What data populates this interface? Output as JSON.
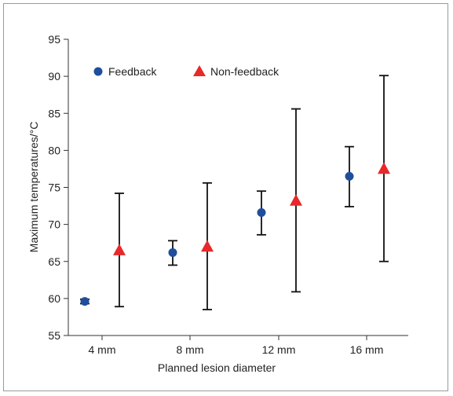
{
  "colors": {
    "feedback": "#1f4e9c",
    "non_feedback": "#e8282a"
  },
  "chart_data": {
    "type": "scatter",
    "title": "",
    "xlabel": "Planned lesion diameter",
    "ylabel": "Maximum temperatures/°C",
    "categories": [
      "4 mm",
      "8 mm",
      "12 mm",
      "16 mm"
    ],
    "ylim": [
      55,
      95
    ],
    "yticks": [
      55,
      60,
      65,
      70,
      75,
      80,
      85,
      90,
      95
    ],
    "grid": false,
    "legend_placement": "top-left",
    "series": [
      {
        "name": "Feedback",
        "marker": "circle",
        "values": [
          59.6,
          66.2,
          71.6,
          76.5
        ],
        "err_low": [
          59.3,
          64.5,
          68.6,
          72.4
        ],
        "err_high": [
          59.9,
          67.8,
          74.5,
          80.5
        ]
      },
      {
        "name": "Non-feedback",
        "marker": "triangle",
        "values": [
          66.5,
          67.0,
          73.2,
          77.5
        ],
        "err_low": [
          58.9,
          58.5,
          60.9,
          65.0
        ],
        "err_high": [
          74.2,
          75.6,
          85.6,
          90.1
        ]
      }
    ]
  }
}
